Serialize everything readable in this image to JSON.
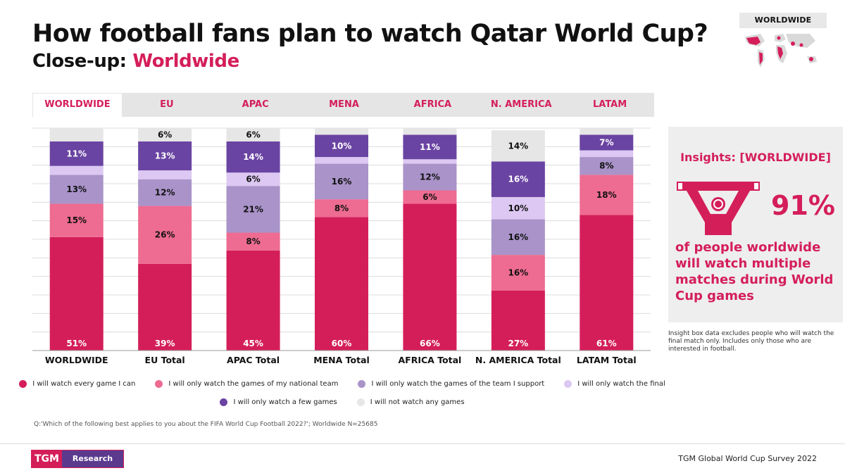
{
  "header": {
    "title": "How football fans plan to watch Qatar World Cup?",
    "subtitle_prefix": "Close-up:",
    "subtitle_accent": "Worldwide"
  },
  "minimap": {
    "label": "WORLDWIDE"
  },
  "tabs": [
    {
      "label": "WORLDWIDE",
      "active": true
    },
    {
      "label": "EU",
      "active": false
    },
    {
      "label": "APAC",
      "active": false
    },
    {
      "label": "MENA",
      "active": false
    },
    {
      "label": "AFRICA",
      "active": false
    },
    {
      "label": "N. AMERICA",
      "active": false
    },
    {
      "label": "LATAM",
      "active": false
    }
  ],
  "chart_data": {
    "type": "bar",
    "stacked": true,
    "title": "How football fans plan to watch Qatar World Cup?",
    "categories": [
      "WORLDWIDE",
      "EU Total",
      "APAC Total",
      "MENA Total",
      "AFRICA Total",
      "N. AMERICA Total",
      "LATAM Total"
    ],
    "ylim": [
      0,
      100
    ],
    "grid": true,
    "series": [
      {
        "name": "I will watch every game I can",
        "color": "#d41e5a",
        "values": [
          51,
          39,
          45,
          60,
          66,
          27,
          61
        ]
      },
      {
        "name": "I will only watch the games of my national team",
        "color": "#ee6b91",
        "values": [
          15,
          26,
          8,
          8,
          6,
          16,
          18
        ]
      },
      {
        "name": "I will only watch the games of the team I support",
        "color": "#a993c9",
        "values": [
          13,
          12,
          21,
          16,
          12,
          16,
          8
        ]
      },
      {
        "name": "I will only watch the final",
        "color": "#dcc8f2",
        "values": [
          4,
          4,
          6,
          3,
          2,
          10,
          3
        ]
      },
      {
        "name": "I will only watch a few games",
        "color": "#6a44a2",
        "values": [
          11,
          13,
          14,
          10,
          11,
          16,
          7
        ]
      },
      {
        "name": "I will not watch any games",
        "color": "#e6e6e6",
        "values": [
          6,
          6,
          6,
          3,
          3,
          14,
          3
        ]
      }
    ],
    "labels": [
      [
        "51%",
        "15%",
        "13%",
        "",
        "11%",
        ""
      ],
      [
        "39%",
        "26%",
        "12%",
        "",
        "13%",
        "6%"
      ],
      [
        "45%",
        "8%",
        "21%",
        "6%",
        "14%",
        "6%"
      ],
      [
        "60%",
        "8%",
        "16%",
        "",
        "10%",
        ""
      ],
      [
        "66%",
        "6%",
        "12%",
        "",
        "11%",
        ""
      ],
      [
        "27%",
        "16%",
        "16%",
        "10%",
        "16%",
        "14%"
      ],
      [
        "61%",
        "18%",
        "8%",
        "",
        "7%",
        ""
      ]
    ]
  },
  "legend": [
    {
      "label": "I will watch every game I can",
      "color": "#d41e5a"
    },
    {
      "label": "I will only watch the games of my national team",
      "color": "#ee6b91"
    },
    {
      "label": "I will only watch the games of the team I support",
      "color": "#a993c9"
    },
    {
      "label": "I will only watch the final",
      "color": "#dcc8f2"
    },
    {
      "label": "I will only watch a few games",
      "color": "#6a44a2"
    },
    {
      "label": "I will not watch any games",
      "color": "#e6e6e6"
    }
  ],
  "question": "Q:'Which of the following best applies to you about the FIFA World Cup Football 2022?'; Worldwide N=25685",
  "insight": {
    "title": "Insights: [WORLDWIDE]",
    "percent": "91%",
    "text": "of people worldwide will watch multiple matches during World Cup games",
    "note": "Insight box data excludes people who will watch the final match only.  Includes only those who are interested in football."
  },
  "footer": {
    "logo_left": "TGM",
    "logo_right": "Research",
    "source": "TGM Global World Cup Survey 2022"
  }
}
